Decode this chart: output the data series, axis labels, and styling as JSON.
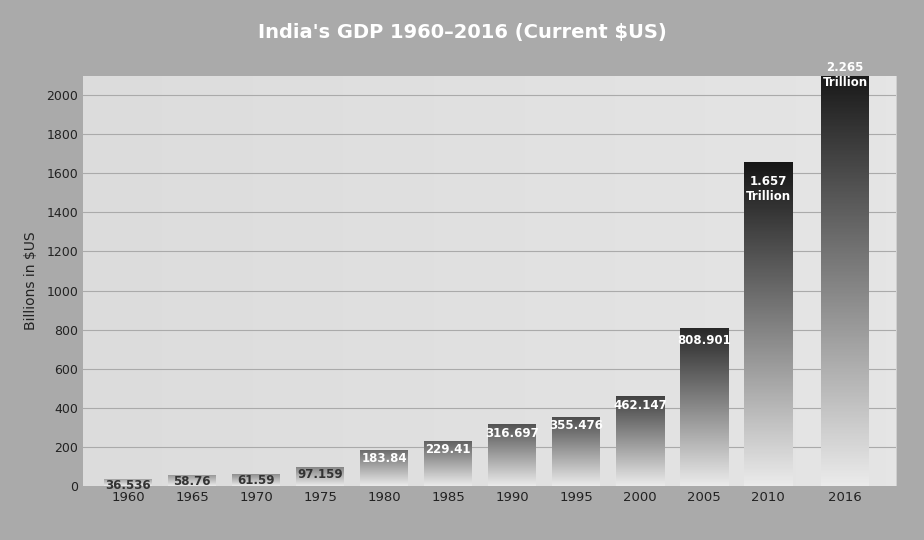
{
  "title": "India's GDP 1960–2016 (Current $US)",
  "ylabel": "Billions in $US",
  "years": [
    1960,
    1965,
    1970,
    1975,
    1980,
    1985,
    1990,
    1995,
    2000,
    2005,
    2010,
    2016
  ],
  "values": [
    36.536,
    58.76,
    61.59,
    97.159,
    183.84,
    229.41,
    316.697,
    355.476,
    462.147,
    808.901,
    1657.0,
    2265.0
  ],
  "labels": [
    "36.536",
    "58.76",
    "61.59",
    "97.159",
    "183.84",
    "229.41",
    "316.697",
    "355.476",
    "462.147",
    "808.901",
    "1.657\nTrillion",
    "2.265\nTrillion"
  ],
  "ylim": [
    0,
    2100
  ],
  "yticks": [
    0,
    200,
    400,
    600,
    800,
    1000,
    1200,
    1400,
    1600,
    1800,
    2000
  ],
  "title_bg": "#888888",
  "title_color": "#ffffff",
  "fig_bg": "#aaaaaa",
  "plot_bg": "#d8d8d8",
  "title_fontsize": 14,
  "label_fontsize": 8.5,
  "axis_label_fontsize": 10,
  "bar_bottom_gray": 0.92,
  "bar_top_grays": [
    0.62,
    0.58,
    0.55,
    0.52,
    0.42,
    0.38,
    0.32,
    0.3,
    0.25,
    0.15,
    0.08,
    0.03
  ],
  "bar_width": 3.8,
  "xlim_left": 1956.5,
  "xlim_right": 2020
}
